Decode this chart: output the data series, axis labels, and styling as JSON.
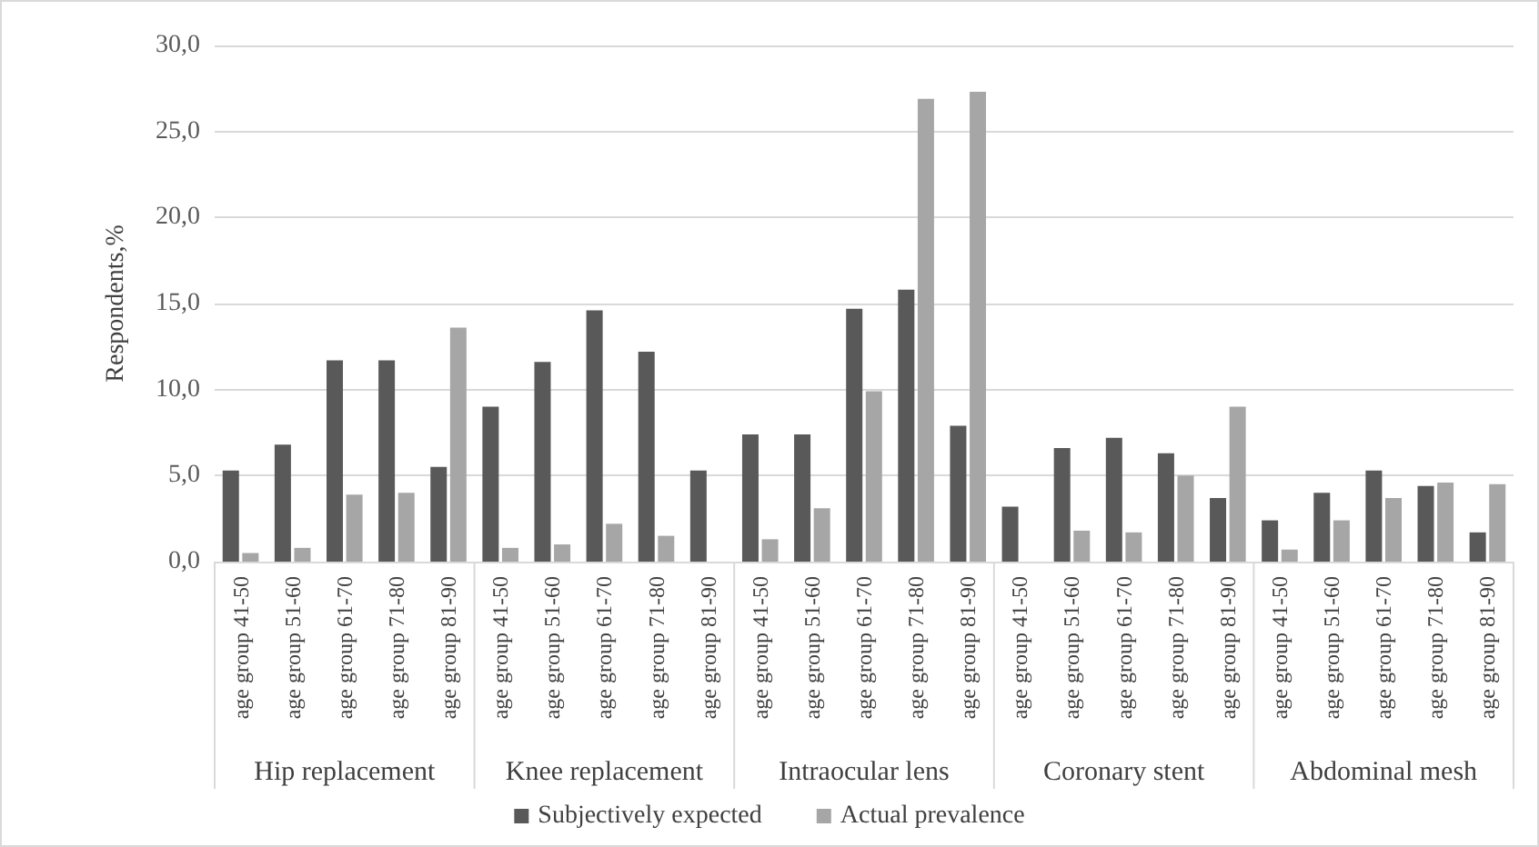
{
  "chart_data": {
    "type": "bar",
    "ylabel": "Respondents,%",
    "categories": [
      "age group 41-50",
      "age group 51-60",
      "age group 61-70",
      "age group 71-80",
      "age group 81-90",
      "age group 41-50",
      "age group 51-60",
      "age group 61-70",
      "age group 71-80",
      "age group 81-90",
      "age group 41-50",
      "age group 51-60",
      "age group 61-70",
      "age group 71-80",
      "age group 81-90",
      "age group 41-50",
      "age group 51-60",
      "age group 61-70",
      "age group 71-80",
      "age group 81-90",
      "age group 41-50",
      "age group 51-60",
      "age group 61-70",
      "age group 71-80",
      "age group 81-90"
    ],
    "series": [
      {
        "name": "Subjectively expected",
        "color": "#595959",
        "values": [
          5.3,
          6.8,
          11.7,
          11.7,
          5.5,
          9.0,
          11.6,
          14.6,
          12.2,
          5.3,
          7.4,
          7.4,
          14.7,
          15.8,
          7.9,
          3.2,
          6.6,
          7.2,
          6.3,
          3.7,
          2.4,
          4.0,
          5.3,
          4.4,
          1.7
        ]
      },
      {
        "name": "Actual prevalence",
        "color": "#a6a6a6",
        "values": [
          0.5,
          0.8,
          3.9,
          4.0,
          13.6,
          0.8,
          1.0,
          2.2,
          1.5,
          0,
          1.3,
          3.1,
          9.9,
          26.9,
          27.3,
          0,
          1.8,
          1.7,
          5.0,
          9.0,
          0.7,
          2.4,
          3.7,
          4.6,
          4.5
        ]
      }
    ],
    "annotations": [
      "Hip replacement",
      "Knee replacement",
      "Intraocular lens",
      "Coronary stent",
      "Abdominal mesh"
    ],
    "ylim": [
      0,
      30
    ],
    "yticks": [
      {
        "value": 0,
        "label": "0,0"
      },
      {
        "value": 5,
        "label": "5,0"
      },
      {
        "value": 10,
        "label": "10,0"
      },
      {
        "value": 15,
        "label": "15,0"
      },
      {
        "value": 20,
        "label": "20,0"
      },
      {
        "value": 25,
        "label": "25,0"
      },
      {
        "value": 30,
        "label": "30,0"
      }
    ],
    "grid": "y",
    "legend": "bottom"
  }
}
